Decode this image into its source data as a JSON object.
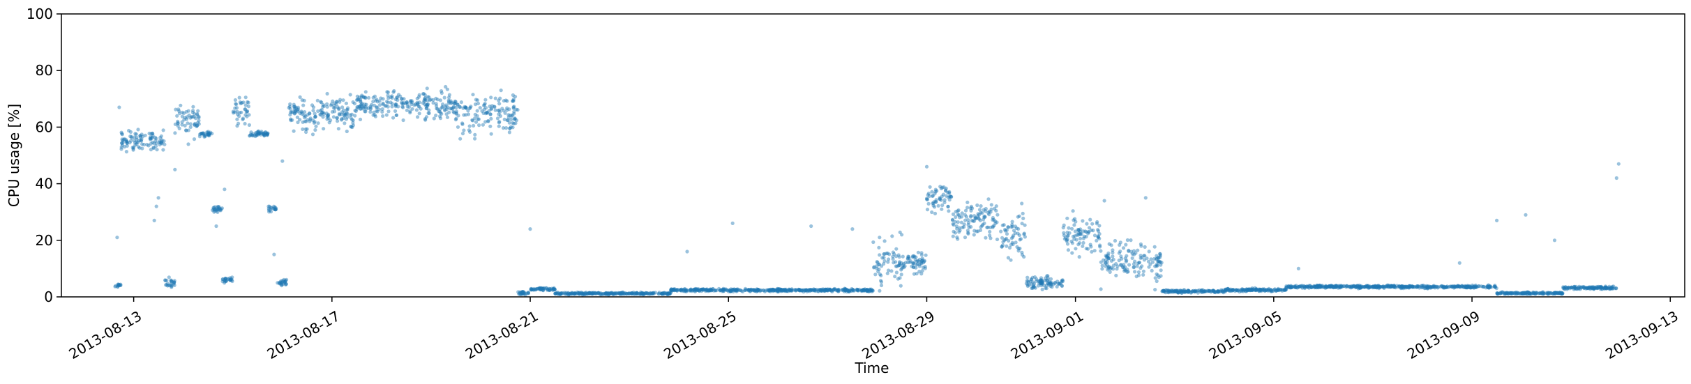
{
  "chart_data": {
    "type": "scatter",
    "title": "",
    "xlabel": "Time",
    "ylabel": "CPU usage [%]",
    "x_type": "date",
    "xlim": [
      "2013-08-11T13:00",
      "2013-09-13T07:00"
    ],
    "ylim": [
      0,
      100
    ],
    "grid": false,
    "xticks": [
      "2013-08-13",
      "2013-08-17",
      "2013-08-21",
      "2013-08-25",
      "2013-08-29",
      "2013-09-01",
      "2013-09-05",
      "2013-09-09",
      "2013-09-13"
    ],
    "yticks": [
      0,
      20,
      40,
      60,
      80,
      100
    ],
    "colors": {
      "points": "#1f77b4"
    },
    "series": [
      {
        "style": "dense point clusters",
        "segments": [
          {
            "start": "2013-08-12T15:00",
            "end": "2013-08-12T18:00",
            "mean": 4,
            "spread": 0.8
          },
          {
            "start": "2013-08-12T18:00",
            "end": "2013-08-13T15:00",
            "mean": 55,
            "spread": 3
          },
          {
            "start": "2013-08-13T15:00",
            "end": "2013-08-13T20:00",
            "mean": 5,
            "spread": 1.5
          },
          {
            "start": "2013-08-13T20:00",
            "end": "2013-08-14T08:00",
            "mean": 63,
            "spread": 5
          },
          {
            "start": "2013-08-14T08:00",
            "end": "2013-08-14T14:00",
            "mean": 57.5,
            "spread": 0.8
          },
          {
            "start": "2013-08-14T14:00",
            "end": "2013-08-14T19:00",
            "mean": 31,
            "spread": 1
          },
          {
            "start": "2013-08-14T19:00",
            "end": "2013-08-15T00:00",
            "mean": 6,
            "spread": 1
          },
          {
            "start": "2013-08-15T00:00",
            "end": "2013-08-15T08:00",
            "mean": 66,
            "spread": 5
          },
          {
            "start": "2013-08-15T08:00",
            "end": "2013-08-15T17:00",
            "mean": 57.5,
            "spread": 0.8
          },
          {
            "start": "2013-08-15T17:00",
            "end": "2013-08-15T21:00",
            "mean": 31,
            "spread": 1
          },
          {
            "start": "2013-08-15T21:00",
            "end": "2013-08-16T02:00",
            "mean": 5,
            "spread": 1
          },
          {
            "start": "2013-08-16T02:00",
            "end": "2013-08-17T12:00",
            "mean": 65,
            "spread": 5
          },
          {
            "start": "2013-08-17T12:00",
            "end": "2013-08-19T12:00",
            "mean": 68,
            "spread": 4
          },
          {
            "start": "2013-08-19T12:00",
            "end": "2013-08-20T18:00",
            "mean": 65,
            "spread": 6
          },
          {
            "start": "2013-08-20T18:00",
            "end": "2013-08-21T00:00",
            "mean": 1.5,
            "spread": 0.5
          },
          {
            "start": "2013-08-21T00:00",
            "end": "2013-08-21T12:00",
            "mean": 2.8,
            "spread": 0.4
          },
          {
            "start": "2013-08-21T12:00",
            "end": "2013-08-23T20:00",
            "mean": 1.2,
            "spread": 0.3
          },
          {
            "start": "2013-08-23T20:00",
            "end": "2013-08-26T12:00",
            "mean": 2.4,
            "spread": 0.4
          },
          {
            "start": "2013-08-26T12:00",
            "end": "2013-08-27T22:00",
            "mean": 2.4,
            "spread": 0.4
          },
          {
            "start": "2013-08-27T22:00",
            "end": "2013-08-28T12:00",
            "mean": 12,
            "spread": 7
          },
          {
            "start": "2013-08-28T12:00",
            "end": "2013-08-29T00:00",
            "mean": 12,
            "spread": 3
          },
          {
            "start": "2013-08-29T00:00",
            "end": "2013-08-29T12:00",
            "mean": 35,
            "spread": 4
          },
          {
            "start": "2013-08-29T12:00",
            "end": "2013-08-30T12:00",
            "mean": 27,
            "spread": 5
          },
          {
            "start": "2013-08-30T12:00",
            "end": "2013-08-31T00:00",
            "mean": 22,
            "spread": 7
          },
          {
            "start": "2013-08-31T00:00",
            "end": "2013-08-31T18:00",
            "mean": 5,
            "spread": 2
          },
          {
            "start": "2013-08-31T18:00",
            "end": "2013-09-01T12:00",
            "mean": 22,
            "spread": 5
          },
          {
            "start": "2013-09-01T12:00",
            "end": "2013-09-02T18:00",
            "mean": 13,
            "spread": 6
          },
          {
            "start": "2013-09-02T18:00",
            "end": "2013-09-04T00:00",
            "mean": 2,
            "spread": 0.4
          },
          {
            "start": "2013-09-04T00:00",
            "end": "2013-09-05T06:00",
            "mean": 2.4,
            "spread": 0.4
          },
          {
            "start": "2013-09-05T06:00",
            "end": "2013-09-09T12:00",
            "mean": 3.6,
            "spread": 0.4
          },
          {
            "start": "2013-09-09T12:00",
            "end": "2013-09-10T20:00",
            "mean": 1.3,
            "spread": 0.3
          },
          {
            "start": "2013-09-10T20:00",
            "end": "2013-09-11T22:00",
            "mean": 3.2,
            "spread": 0.4
          }
        ],
        "outliers": [
          {
            "x": "2013-08-12T16:00",
            "y": 21
          },
          {
            "x": "2013-08-12T17:00",
            "y": 67
          },
          {
            "x": "2013-08-13T10:00",
            "y": 27
          },
          {
            "x": "2013-08-13T11:00",
            "y": 32
          },
          {
            "x": "2013-08-13T12:00",
            "y": 35
          },
          {
            "x": "2013-08-13T20:00",
            "y": 45
          },
          {
            "x": "2013-08-14T16:00",
            "y": 25
          },
          {
            "x": "2013-08-14T20:00",
            "y": 38
          },
          {
            "x": "2013-08-15T20:00",
            "y": 15
          },
          {
            "x": "2013-08-16T00:00",
            "y": 48
          },
          {
            "x": "2013-08-21T00:00",
            "y": 24
          },
          {
            "x": "2013-08-24T04:00",
            "y": 16
          },
          {
            "x": "2013-08-25T02:00",
            "y": 26
          },
          {
            "x": "2013-08-26T16:00",
            "y": 25
          },
          {
            "x": "2013-08-27T12:00",
            "y": 24
          },
          {
            "x": "2013-08-29T00:00",
            "y": 46
          },
          {
            "x": "2013-08-30T22:00",
            "y": 33
          },
          {
            "x": "2013-09-01T14:00",
            "y": 34
          },
          {
            "x": "2013-09-02T10:00",
            "y": 35
          },
          {
            "x": "2013-09-05T12:00",
            "y": 10
          },
          {
            "x": "2013-09-08T18:00",
            "y": 12
          },
          {
            "x": "2013-09-09T12:00",
            "y": 27
          },
          {
            "x": "2013-09-10T02:00",
            "y": 29
          },
          {
            "x": "2013-09-10T16:00",
            "y": 20
          },
          {
            "x": "2013-09-11T22:00",
            "y": 42
          },
          {
            "x": "2013-09-11T23:00",
            "y": 47
          }
        ]
      }
    ]
  }
}
